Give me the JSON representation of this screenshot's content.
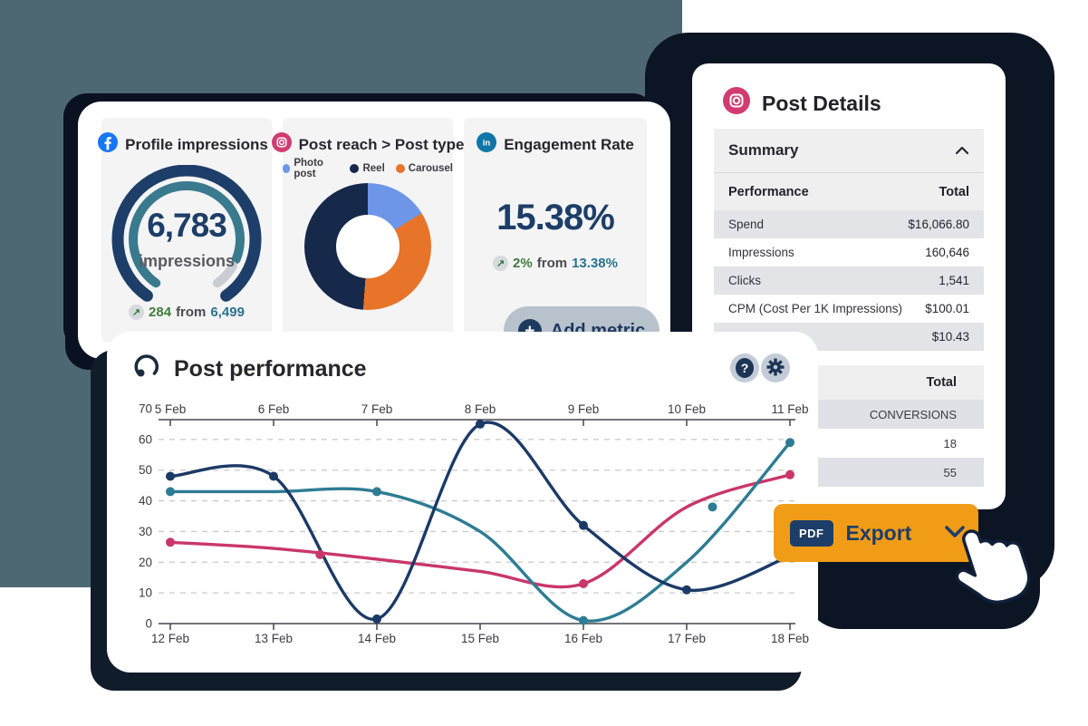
{
  "palette": {
    "slate_blob": "#4d6872",
    "dark_blob": "#0c1524",
    "navy": "#1d3e68",
    "teal": "#2e7c94",
    "pink": "#c9366b",
    "orange": "#f09c17",
    "green": "#3f7d3c"
  },
  "cards": {
    "profile_impressions": {
      "title": "Profile impressions",
      "value": "6,783",
      "unit": "impressions",
      "delta": "284",
      "from_label": "from",
      "previous": "6,499"
    },
    "post_reach": {
      "title": "Post reach > Post type",
      "legend": [
        {
          "label": "Photo post",
          "color": "#6d96e8"
        },
        {
          "label": "Reel",
          "color": "#16294a"
        },
        {
          "label": "Carousel",
          "color": "#e8742a"
        }
      ]
    },
    "engagement": {
      "title": "Engagement Rate",
      "value": "15.38%",
      "delta": "2%",
      "from_label": "from",
      "previous": "13.38%"
    }
  },
  "add_metric": {
    "label": "Add metric"
  },
  "post_details": {
    "title": "Post Details",
    "summary": {
      "label": "Summary"
    },
    "performance_table": {
      "headers": [
        "Performance",
        "Total"
      ],
      "rows": [
        [
          "Spend",
          "$16,066.80"
        ],
        [
          "Impressions",
          "160,646"
        ],
        [
          "Clicks",
          "1,541"
        ],
        [
          "CPM (Cost Per 1K Impressions)",
          "$100.01"
        ],
        [
          "",
          "$10.43"
        ]
      ]
    },
    "totals_table": {
      "header": "Total",
      "rows": [
        "CONVERSIONS",
        "18",
        "55"
      ]
    }
  },
  "post_performance": {
    "title": "Post performance"
  },
  "export": {
    "badge": "PDF",
    "label": "Export"
  },
  "chart_data": [
    {
      "type": "gauge",
      "title": "Profile impressions",
      "value": 6783,
      "unit": "impressions",
      "previous": 6499,
      "delta": 284
    },
    {
      "type": "pie",
      "donut": true,
      "title": "Post reach > Post type",
      "labels": [
        "Photo post",
        "Reel",
        "Carousel"
      ],
      "values": [
        32,
        33,
        35
      ],
      "colors": [
        "#6d96e8",
        "#16294a",
        "#e8742a"
      ],
      "start_angle_deg": -57,
      "render_order": [
        0,
        2,
        1
      ]
    },
    {
      "type": "line",
      "title": "Post performance",
      "x_top_labels": [
        "5 Feb",
        "6 Feb",
        "7 Feb",
        "8 Feb",
        "9 Feb",
        "10 Feb",
        "11 Feb"
      ],
      "x_bottom_labels": [
        "12 Feb",
        "13 Feb",
        "14 Feb",
        "15 Feb",
        "16 Feb",
        "17 Feb",
        "18 Feb"
      ],
      "ylim": [
        0,
        70
      ],
      "yticks": [
        0,
        10,
        20,
        30,
        40,
        50,
        60,
        70
      ],
      "grid": "horizontal-dashed",
      "series": [
        {
          "name": "series-pink",
          "color": "#c9366b",
          "points": [
            [
              0,
              26.5
            ],
            [
              1,
              24.5
            ],
            [
              2,
              21
            ],
            [
              3,
              17
            ],
            [
              4,
              13
            ],
            [
              5,
              38
            ],
            [
              6,
              48.5
            ]
          ],
          "dots": [
            [
              0,
              26.5
            ],
            [
              1.45,
              22.5
            ],
            [
              4,
              13
            ],
            [
              6,
              48.5
            ]
          ]
        },
        {
          "name": "series-teal",
          "color": "#2e7c94",
          "points": [
            [
              0,
              43
            ],
            [
              1,
              43
            ],
            [
              2,
              43
            ],
            [
              3,
              30
            ],
            [
              4,
              1
            ],
            [
              5,
              20
            ],
            [
              6,
              59
            ]
          ],
          "dots": [
            [
              0,
              43
            ],
            [
              2,
              43
            ],
            [
              4,
              1
            ],
            [
              5.25,
              38
            ],
            [
              6,
              59
            ]
          ]
        },
        {
          "name": "series-navy",
          "color": "#1b3a66",
          "points": [
            [
              0,
              48
            ],
            [
              1,
              48
            ],
            [
              2,
              1.5
            ],
            [
              3,
              65
            ],
            [
              4,
              32
            ],
            [
              5,
              11
            ],
            [
              6,
              22
            ]
          ],
          "dots": [
            [
              0,
              48
            ],
            [
              1,
              48
            ],
            [
              2,
              1.5
            ],
            [
              3,
              65
            ],
            [
              4,
              32
            ],
            [
              5,
              11
            ],
            [
              6,
              22
            ]
          ]
        }
      ]
    }
  ]
}
